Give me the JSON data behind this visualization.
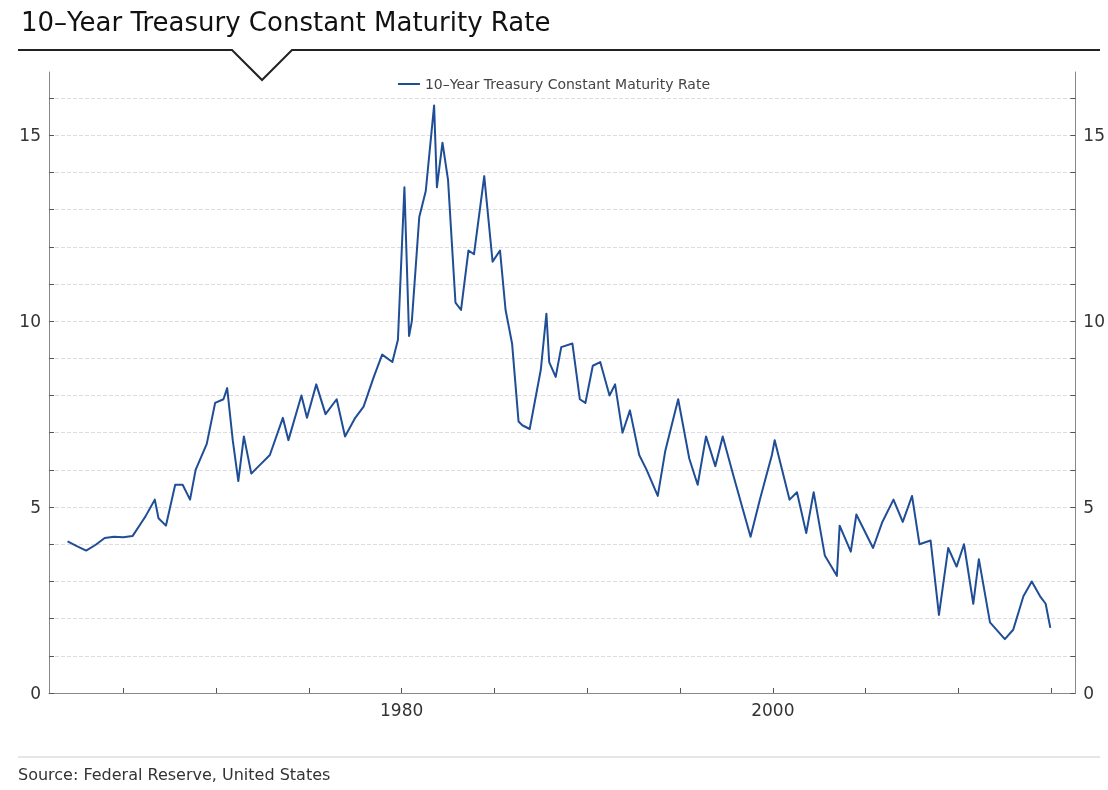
{
  "chart_data": {
    "type": "line",
    "title": "10–Year Treasury Constant Maturity Rate",
    "x": [
      1962.0,
      1962.5,
      1963.0,
      1963.5,
      1964.0,
      1964.5,
      1965.0,
      1965.5,
      1966.0,
      1966.2,
      1966.7,
      1966.9,
      1967.3,
      1967.8,
      1968.2,
      1968.6,
      1968.9,
      1969.5,
      1969.95,
      1970.4,
      1970.6,
      1970.9,
      1971.2,
      1971.5,
      1971.9,
      1972.3,
      1972.9,
      1973.6,
      1973.9,
      1974.6,
      1974.9,
      1975.4,
      1975.9,
      1976.5,
      1976.95,
      1977.5,
      1977.95,
      1978.5,
      1978.95,
      1979.5,
      1979.8,
      1980.15,
      1980.4,
      1980.55,
      1980.95,
      1981.3,
      1981.75,
      1981.9,
      1982.2,
      1982.5,
      1982.9,
      1983.2,
      1983.6,
      1983.9,
      1984.45,
      1984.9,
      1985.3,
      1985.6,
      1985.95,
      1986.3,
      1986.5,
      1986.9,
      1987.5,
      1987.8,
      1987.95,
      1988.3,
      1988.6,
      1989.2,
      1989.6,
      1989.9,
      1990.3,
      1990.7,
      1991.2,
      1991.5,
      1991.9,
      1992.3,
      1992.8,
      1993.2,
      1993.8,
      1994.2,
      1994.9,
      1995.5,
      1995.95,
      1996.4,
      1996.9,
      1997.3,
      1997.9,
      1998.8,
      1999.3,
      1999.95,
      2000.1,
      2000.5,
      2000.9,
      2001.3,
      2001.8,
      2002.2,
      2002.8,
      2003.45,
      2003.6,
      2004.2,
      2004.5,
      2005.4,
      2005.9,
      2006.5,
      2007.0,
      2007.5,
      2007.9,
      2008.5,
      2008.95,
      2009.45,
      2009.9,
      2010.3,
      2010.8,
      2011.1,
      2011.7,
      2012.5,
      2012.95,
      2013.5,
      2013.95,
      2014.4,
      2014.7,
      2014.95
    ],
    "series": [
      {
        "name": "10–Year Treasury Constant Maturity Rate",
        "color": "#1f4e96",
        "values": [
          4.08,
          3.95,
          3.83,
          3.98,
          4.17,
          4.2,
          4.19,
          4.22,
          4.6,
          4.75,
          5.2,
          4.7,
          4.5,
          5.6,
          5.6,
          5.2,
          6.0,
          6.7,
          7.8,
          7.9,
          8.2,
          6.8,
          5.7,
          6.9,
          5.9,
          6.1,
          6.4,
          7.4,
          6.8,
          8.0,
          7.4,
          8.3,
          7.5,
          7.9,
          6.9,
          7.4,
          7.7,
          8.5,
          9.1,
          8.9,
          9.5,
          13.6,
          9.6,
          10.0,
          12.8,
          13.5,
          15.8,
          13.6,
          14.8,
          13.8,
          10.5,
          10.3,
          11.9,
          11.8,
          13.9,
          11.6,
          11.9,
          10.3,
          9.4,
          7.3,
          7.2,
          7.1,
          8.7,
          10.2,
          8.9,
          8.5,
          9.3,
          9.4,
          7.9,
          7.8,
          8.8,
          8.9,
          8.0,
          8.3,
          7.0,
          7.6,
          6.4,
          6.0,
          5.3,
          6.5,
          7.9,
          6.3,
          5.6,
          6.9,
          6.1,
          6.9,
          5.8,
          4.2,
          5.2,
          6.4,
          6.8,
          6.0,
          5.2,
          5.4,
          4.3,
          5.4,
          3.7,
          3.15,
          4.5,
          3.8,
          4.8,
          3.9,
          4.6,
          5.2,
          4.6,
          5.3,
          4.0,
          4.1,
          2.1,
          3.9,
          3.4,
          4.0,
          2.4,
          3.6,
          1.9,
          1.45,
          1.7,
          2.6,
          3.0,
          2.6,
          2.4,
          1.75
        ]
      }
    ],
    "xlim": [
      1961,
      2016.3
    ],
    "xticks": [
      {
        "value": 1965,
        "label": null
      },
      {
        "value": 1970,
        "label": null
      },
      {
        "value": 1975,
        "label": null
      },
      1980,
      {
        "value": 1985,
        "label": null
      },
      {
        "value": 1990,
        "label": null
      },
      {
        "value": 1995,
        "label": null
      },
      2000,
      {
        "value": 2005,
        "label": null
      },
      {
        "value": 2010,
        "label": null
      },
      {
        "value": 2015,
        "label": null
      }
    ],
    "ylim": [
      0,
      16.7
    ],
    "yticks": [
      0,
      {
        "value": 1,
        "label": null
      },
      {
        "value": 2,
        "label": null
      },
      {
        "value": 3,
        "label": null
      },
      {
        "value": 4,
        "label": null
      },
      5,
      {
        "value": 6,
        "label": null
      },
      {
        "value": 7,
        "label": null
      },
      {
        "value": 8,
        "label": null
      },
      {
        "value": 9,
        "label": null
      },
      10,
      {
        "value": 11,
        "label": null
      },
      {
        "value": 12,
        "label": null
      },
      {
        "value": 13,
        "label": null
      },
      {
        "value": 14,
        "label": null
      },
      15,
      {
        "value": 16,
        "label": null
      }
    ],
    "y2lim": [
      0,
      16.7
    ],
    "y2ticks": [
      0,
      {
        "value": 1,
        "label": null
      },
      {
        "value": 2,
        "label": null
      },
      {
        "value": 3,
        "label": null
      },
      {
        "value": 4,
        "label": null
      },
      5,
      {
        "value": 6,
        "label": null
      },
      {
        "value": 7,
        "label": null
      },
      {
        "value": 8,
        "label": null
      },
      {
        "value": 9,
        "label": null
      },
      10,
      {
        "value": 11,
        "label": null
      },
      {
        "value": 12,
        "label": null
      },
      {
        "value": 13,
        "label": null
      },
      {
        "value": 14,
        "label": null
      },
      15,
      {
        "value": 16,
        "label": null
      }
    ],
    "grid": "y",
    "legend": "top",
    "marker": "none",
    "line_style": "solid",
    "annotations": [
      "Source: Federal Reserve, United States"
    ]
  }
}
